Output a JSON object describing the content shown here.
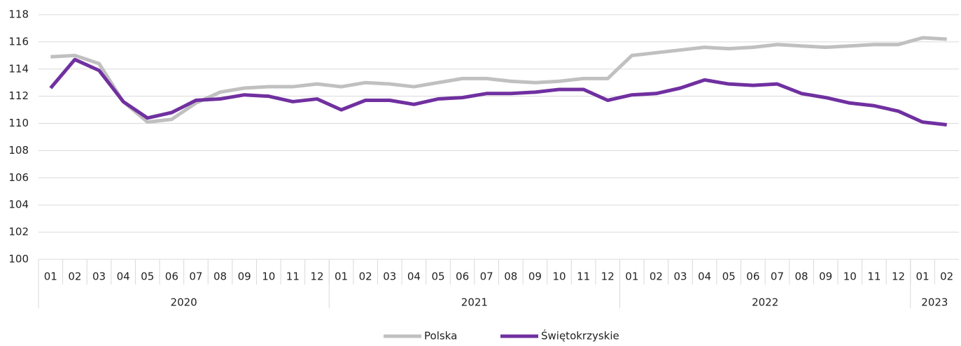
{
  "chart_data": {
    "type": "line",
    "categories": [
      "01",
      "02",
      "03",
      "04",
      "05",
      "06",
      "07",
      "08",
      "09",
      "10",
      "11",
      "12",
      "01",
      "02",
      "03",
      "04",
      "05",
      "06",
      "07",
      "08",
      "09",
      "10",
      "11",
      "12",
      "01",
      "02",
      "03",
      "04",
      "05",
      "06",
      "07",
      "08",
      "09",
      "10",
      "11",
      "12",
      "01",
      "02"
    ],
    "category_groups": [
      {
        "name": "2020",
        "size": 12
      },
      {
        "name": "2021",
        "size": 12
      },
      {
        "name": "2022",
        "size": 12
      },
      {
        "name": "2023",
        "size": 2
      }
    ],
    "series": [
      {
        "name": "Polska",
        "color": "#c0c0c0",
        "values": [
          114.9,
          115.0,
          114.4,
          111.6,
          110.1,
          110.3,
          111.5,
          112.3,
          112.6,
          112.7,
          112.7,
          112.9,
          112.7,
          113.0,
          112.9,
          112.7,
          113.0,
          113.3,
          113.3,
          113.1,
          113.0,
          113.1,
          113.3,
          113.3,
          115.0,
          115.2,
          115.4,
          115.6,
          115.5,
          115.6,
          115.8,
          115.7,
          115.6,
          115.7,
          115.8,
          115.8,
          116.3,
          116.2
        ]
      },
      {
        "name": "Świętokrzyskie",
        "color": "#7030a0",
        "values": [
          112.6,
          114.7,
          113.9,
          111.6,
          110.4,
          110.8,
          111.7,
          111.8,
          112.1,
          112.0,
          111.6,
          111.8,
          111.0,
          111.7,
          111.7,
          111.4,
          111.8,
          111.9,
          112.2,
          112.2,
          112.3,
          112.5,
          112.5,
          111.7,
          112.1,
          112.2,
          112.6,
          113.2,
          112.9,
          112.8,
          112.9,
          112.2,
          111.9,
          111.5,
          111.3,
          110.9,
          110.1,
          109.9
        ]
      }
    ],
    "ylim": [
      100,
      118
    ],
    "yticks": [
      100,
      102,
      104,
      106,
      108,
      110,
      112,
      114,
      116,
      118
    ],
    "grid": true,
    "legend": "bottom"
  }
}
